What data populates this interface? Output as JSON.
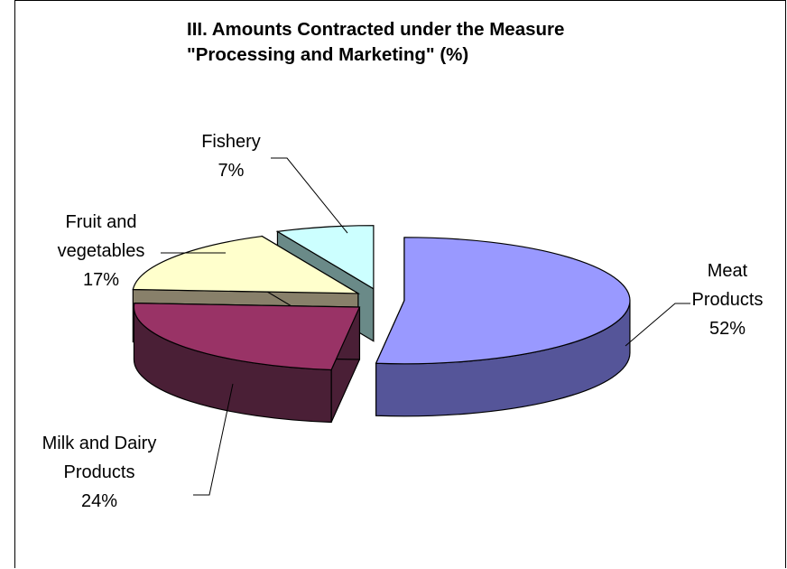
{
  "chart_data": {
    "type": "pie",
    "title": "III. Amounts Contracted under the Measure",
    "subtitle": "\"Processing and Marketing\" (%)",
    "slices": [
      {
        "label_lines": [
          "Meat",
          "Products"
        ],
        "value": 52,
        "value_label": "52%",
        "color": "#9999ff",
        "side": "#555599"
      },
      {
        "label_lines": [
          "Milk and Dairy",
          "Products"
        ],
        "value": 24,
        "value_label": "24%",
        "color": "#993366",
        "side": "#4a1f36"
      },
      {
        "label_lines": [
          "Fruit and",
          "vegetables"
        ],
        "value": 17,
        "value_label": "17%",
        "color": "#ffffcc",
        "side": "#88806a"
      },
      {
        "label_lines": [
          "Fishery"
        ],
        "value": 7,
        "value_label": "7%",
        "color": "#ccffff",
        "side": "#6a8a88"
      }
    ],
    "exploded": true,
    "three_d": true,
    "legend": "none"
  }
}
